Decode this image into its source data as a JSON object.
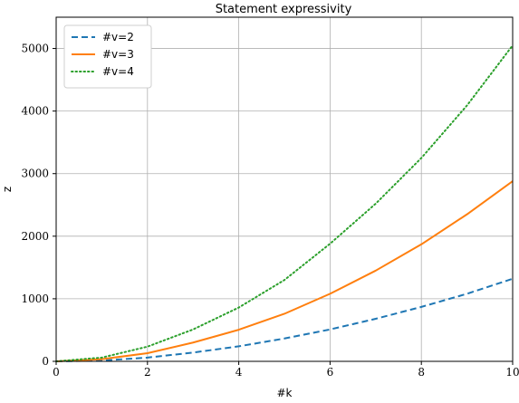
{
  "chart_data": {
    "type": "line",
    "title": "Statement expressivity",
    "xlabel": "#k",
    "ylabel": "z",
    "xlim": [
      0,
      10
    ],
    "ylim": [
      0,
      5500
    ],
    "xticks": [
      0,
      2,
      4,
      6,
      8,
      10
    ],
    "yticks": [
      0,
      1000,
      2000,
      3000,
      4000,
      5000
    ],
    "grid": true,
    "legend_position": "top-left",
    "x": [
      0,
      1,
      2,
      3,
      4,
      5,
      6,
      7,
      8,
      9,
      10
    ],
    "series": [
      {
        "name": "#v=2",
        "line_style": "dashed",
        "color": "#1f77b4",
        "values": [
          0,
          12,
          60,
          140,
          240,
          365,
          510,
          680,
          870,
          1080,
          1320
        ]
      },
      {
        "name": "#v=3",
        "line_style": "solid",
        "color": "#ff7f0e",
        "values": [
          0,
          35,
          130,
          300,
          505,
          760,
          1080,
          1450,
          1870,
          2350,
          2880
        ]
      },
      {
        "name": "#v=4",
        "line_style": "dotted",
        "color": "#2ca02c",
        "values": [
          0,
          60,
          235,
          510,
          860,
          1300,
          1880,
          2520,
          3250,
          4090,
          5050
        ]
      }
    ]
  }
}
